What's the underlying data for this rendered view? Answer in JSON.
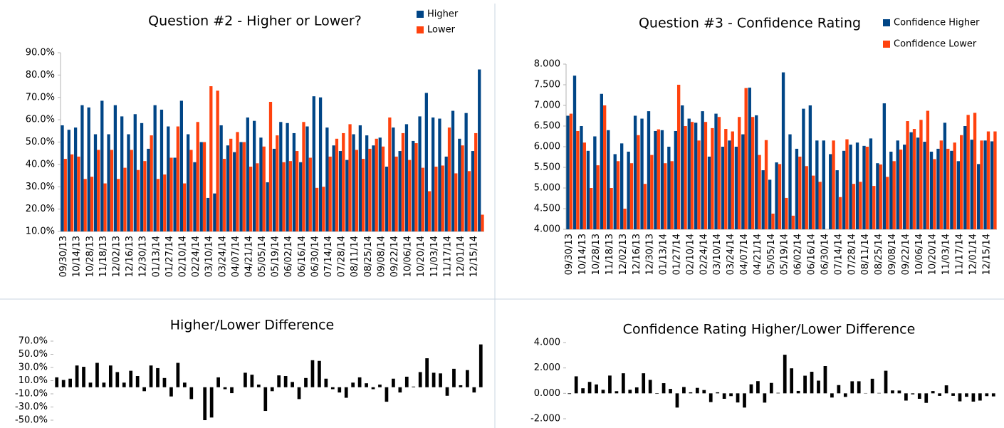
{
  "chart_data": [
    {
      "type": "bar",
      "title": "Question #2 - Higher or Lower?",
      "legend": "top-right",
      "categories": [
        "09/30/13",
        null,
        "10/14/13",
        null,
        "10/28/13",
        null,
        "11/18/13",
        null,
        "12/02/13",
        null,
        "12/16/13",
        null,
        "12/30/13",
        null,
        "01/13/14",
        null,
        "01/27/14",
        null,
        "02/10/14",
        null,
        "02/24/14",
        null,
        "03/10/14",
        null,
        "03/24/14",
        null,
        "04/07/14",
        null,
        "04/21/14",
        null,
        "05/05/14",
        null,
        "05/19/14",
        null,
        "06/02/14",
        null,
        "06/16/14",
        null,
        "06/30/14",
        null,
        "07/14/14",
        null,
        "07/28/14",
        null,
        "08/11/14",
        null,
        "08/25/14",
        null,
        "09/08/14",
        null,
        "09/22/14",
        null,
        "10/06/14",
        null,
        "10/20/14",
        null,
        "11/03/14",
        null,
        "11/17/14",
        null,
        "12/01/14",
        null,
        "12/15/14",
        null
      ],
      "series": [
        {
          "name": "Higher",
          "color": "#004586",
          "values": [
            57.5,
            55.5,
            56.5,
            66.5,
            65.5,
            53.5,
            68.5,
            53.5,
            66.5,
            61.5,
            53.5,
            62.5,
            58.5,
            47,
            66.5,
            64.5,
            57,
            43,
            68.5,
            53.5,
            41,
            50,
            25,
            27,
            57.5,
            48.5,
            45.5,
            50,
            61,
            59.5,
            52,
            32,
            47,
            59,
            58.5,
            54,
            41,
            57,
            70.5,
            70,
            56.5,
            48.5,
            46,
            42,
            53.5,
            57.5,
            53,
            48.5,
            52,
            39,
            56.5,
            46,
            58,
            50.5,
            61.5,
            72,
            61,
            60.5,
            43.5,
            64,
            51.5,
            63,
            46,
            82.5
          ]
        },
        {
          "name": "Lower",
          "color": "#ff420e",
          "values": [
            42.5,
            44.5,
            43.5,
            33.5,
            34.5,
            46.5,
            31.5,
            46.5,
            33.5,
            38.5,
            46.5,
            37.5,
            41.5,
            53,
            33.5,
            35.5,
            43,
            57,
            31.5,
            46.5,
            59,
            50,
            75,
            73,
            42.5,
            51.5,
            54.5,
            50,
            39,
            40.5,
            48,
            68,
            53,
            41,
            41.5,
            46,
            59,
            43,
            29.5,
            30,
            43.5,
            51.5,
            54,
            58,
            46.5,
            42.5,
            47,
            51.5,
            48,
            61,
            43.5,
            54,
            42,
            49.5,
            38.5,
            28,
            39,
            39.5,
            56.5,
            36,
            48.5,
            37,
            54,
            17.5
          ]
        }
      ],
      "ylim": [
        10,
        90
      ],
      "yticks": [
        {
          "value": 10,
          "label": "10.0%"
        },
        {
          "value": 20,
          "label": "20.0%"
        },
        {
          "value": 30,
          "label": "30.0%"
        },
        {
          "value": 40,
          "label": "40.0%"
        },
        {
          "value": 50,
          "label": "50.0%"
        },
        {
          "value": 60,
          "label": "60.0%"
        },
        {
          "value": 70,
          "label": "70.0%"
        },
        {
          "value": 80,
          "label": "80.0%"
        },
        {
          "value": 90,
          "label": "90.0%"
        }
      ]
    },
    {
      "type": "bar",
      "title": "Question #3 - Confidence Rating",
      "legend": "top-right",
      "categories": [
        "09/30/13",
        null,
        "10/14/13",
        null,
        "10/28/13",
        null,
        "11/18/13",
        null,
        "12/02/13",
        null,
        "12/16/13",
        null,
        "12/30/13",
        null,
        "01/13/14",
        null,
        "01/27/14",
        null,
        "02/10/14",
        null,
        "02/24/14",
        null,
        "03/10/14",
        null,
        "03/24/14",
        null,
        "04/07/14",
        null,
        "04/21/14",
        null,
        "05/05/14",
        null,
        "05/19/14",
        null,
        "06/02/14",
        null,
        "06/16/14",
        null,
        "06/30/14",
        null,
        "07/14/14",
        null,
        "07/28/14",
        null,
        "08/11/14",
        null,
        "08/25/14",
        null,
        "09/08/14",
        null,
        "09/22/14",
        null,
        "10/06/14",
        null,
        "10/20/14",
        null,
        "11/03/14",
        null,
        "11/17/14",
        null,
        "12/01/14",
        null,
        "12/15/14",
        null
      ],
      "series": [
        {
          "name": "Confidence Higher",
          "color": "#004586",
          "values": [
            6.75,
            7.72,
            6.5,
            5.9,
            6.25,
            7.28,
            6.4,
            5.82,
            6.08,
            5.88,
            6.75,
            6.68,
            6.86,
            6.38,
            6.4,
            6.0,
            6.38,
            7.0,
            6.68,
            6.58,
            6.86,
            5.76,
            6.8,
            6.0,
            6.15,
            6.0,
            6.3,
            7.43,
            6.76,
            5.43,
            5.2,
            5.62,
            7.8,
            6.3,
            5.95,
            6.92,
            7.0,
            6.15,
            6.15,
            5.82,
            5.43,
            5.9,
            6.05,
            6.1,
            6.02,
            6.2,
            5.6,
            7.05,
            5.88,
            6.15,
            6.05,
            6.35,
            6.22,
            6.12,
            5.88,
            5.95,
            6.58,
            5.9,
            5.65,
            6.5,
            6.17,
            5.58,
            6.15,
            6.13
          ]
        },
        {
          "name": "Confidence Lower",
          "color": "#ff420e",
          "values": [
            6.8,
            6.38,
            6.1,
            5.0,
            5.55,
            7.0,
            5.0,
            5.65,
            4.5,
            5.6,
            6.28,
            5.1,
            5.8,
            6.42,
            5.6,
            5.65,
            7.5,
            6.5,
            6.6,
            6.15,
            6.6,
            6.45,
            6.72,
            6.43,
            6.37,
            6.72,
            7.42,
            6.72,
            5.8,
            6.16,
            4.38,
            5.58,
            4.76,
            4.33,
            5.76,
            5.53,
            5.3,
            5.15,
            4.0,
            6.15,
            4.78,
            6.18,
            5.1,
            5.15,
            6.0,
            5.05,
            5.57,
            5.27,
            5.65,
            5.93,
            6.62,
            6.43,
            6.65,
            6.87,
            5.7,
            6.15,
            5.95,
            6.1,
            6.28,
            6.77,
            6.82,
            6.15,
            6.37,
            6.37
          ]
        }
      ],
      "ylim": [
        4,
        8
      ],
      "yticks": [
        {
          "value": 4,
          "label": "4.000"
        },
        {
          "value": 4.5,
          "label": "4.500"
        },
        {
          "value": 5,
          "label": "5.000"
        },
        {
          "value": 5.5,
          "label": "5.500"
        },
        {
          "value": 6,
          "label": "6.000"
        },
        {
          "value": 6.5,
          "label": "6.500"
        },
        {
          "value": 7,
          "label": "7.000"
        },
        {
          "value": 7.5,
          "label": "7.500"
        },
        {
          "value": 8,
          "label": "8.000"
        }
      ]
    },
    {
      "type": "bar",
      "title": "Higher/Lower Difference",
      "color": "#000000",
      "values": [
        15,
        11,
        13,
        33,
        31,
        7,
        37,
        7,
        33,
        23,
        7,
        25,
        17,
        -6,
        33,
        29,
        14,
        -14,
        37,
        7,
        -18,
        0,
        -50,
        -46,
        15,
        -3,
        -9,
        0,
        22,
        19,
        4,
        -36,
        -6,
        18,
        17,
        8,
        -18,
        14,
        41,
        40,
        13,
        -3,
        -8,
        -16,
        7,
        15,
        6,
        -3,
        4,
        -22,
        13,
        -8,
        16,
        1,
        23,
        44,
        22,
        21,
        -13,
        28,
        3,
        26,
        -8,
        65
      ],
      "ylim": [
        -50,
        70
      ],
      "yticks": [
        {
          "value": -50,
          "label": "-50.0%"
        },
        {
          "value": -30,
          "label": "-30.0%"
        },
        {
          "value": -10,
          "label": "-10.0%"
        },
        {
          "value": 10,
          "label": "10.0%"
        },
        {
          "value": 30,
          "label": "30.0%"
        },
        {
          "value": 50,
          "label": "50.0%"
        },
        {
          "value": 70,
          "label": "70.0%"
        }
      ]
    },
    {
      "type": "bar",
      "title": "Confidence Rating Higher/Lower Difference",
      "color": "#000000",
      "values": [
        -0.05,
        1.34,
        0.4,
        0.9,
        0.7,
        0.28,
        1.4,
        0.17,
        1.58,
        0.28,
        0.47,
        1.58,
        1.06,
        -0.04,
        0.8,
        0.35,
        -1.12,
        0.5,
        0.08,
        0.43,
        0.26,
        -0.69,
        0.08,
        -0.43,
        -0.22,
        -0.72,
        -1.12,
        0.71,
        0.96,
        -0.73,
        0.82,
        0.04,
        3.04,
        1.97,
        0.19,
        1.39,
        1.7,
        1.0,
        2.15,
        -0.33,
        0.65,
        -0.28,
        0.95,
        0.95,
        0.02,
        1.15,
        0.03,
        1.78,
        0.23,
        0.22,
        -0.57,
        -0.08,
        -0.43,
        -0.75,
        0.18,
        -0.2,
        0.63,
        -0.2,
        -0.63,
        -0.27,
        -0.65,
        -0.57,
        -0.22,
        -0.24
      ],
      "ylim": [
        -2,
        4
      ],
      "yticks": [
        {
          "value": -2,
          "label": "-2.000"
        },
        {
          "value": 0,
          "label": "0.000"
        },
        {
          "value": 2,
          "label": "2.000"
        },
        {
          "value": 4,
          "label": "4.000"
        }
      ]
    }
  ]
}
